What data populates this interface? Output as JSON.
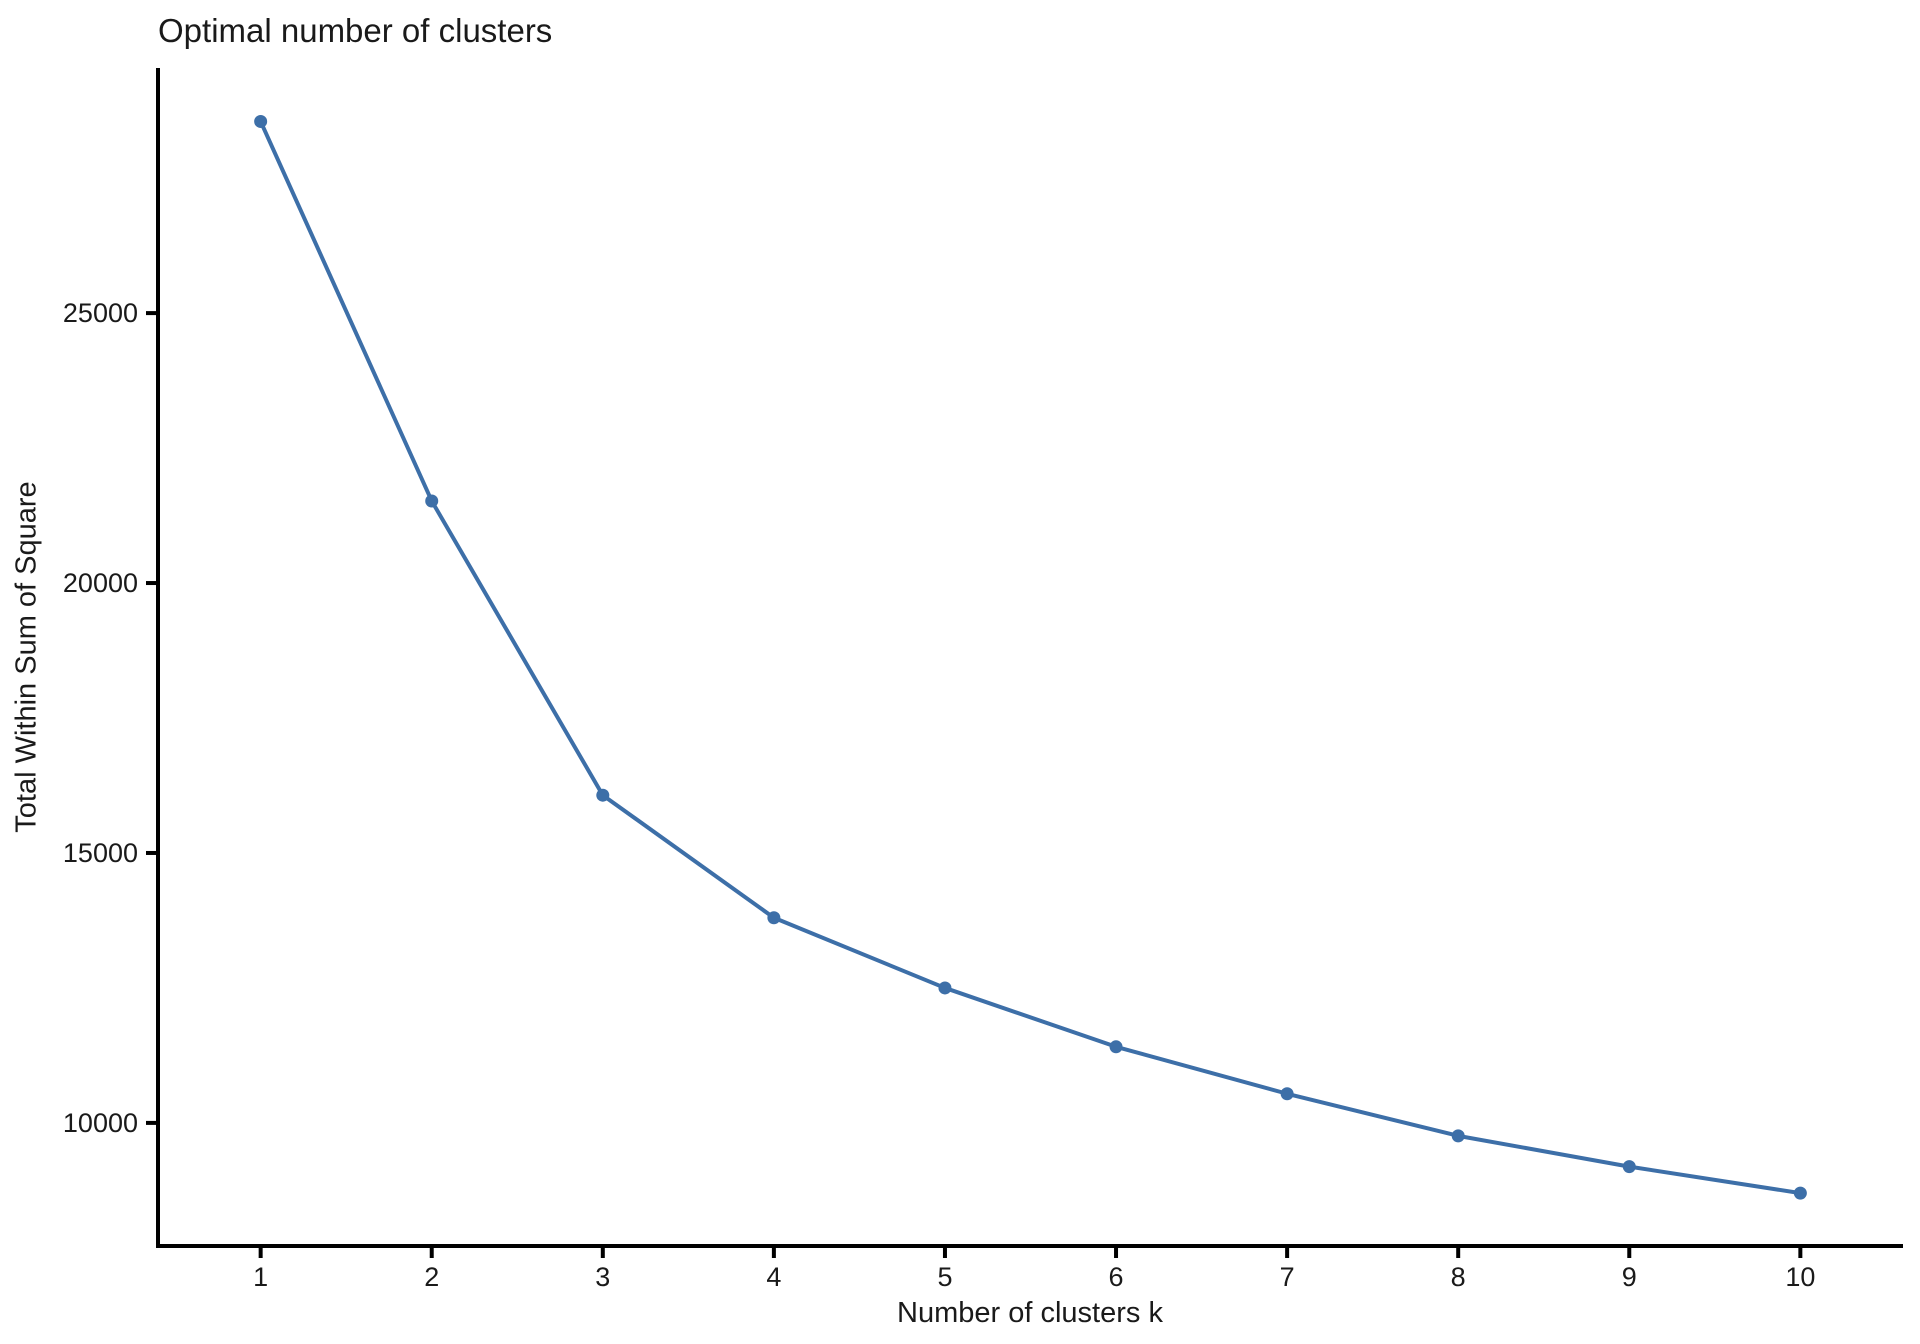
{
  "chart_data": {
    "type": "line",
    "title": "Optimal number of clusters",
    "xlabel": "Number of clusters k",
    "ylabel": "Total Within Sum of Square",
    "x": [
      1,
      2,
      3,
      4,
      5,
      6,
      7,
      8,
      9,
      10
    ],
    "y": [
      28550,
      21520,
      16070,
      13800,
      12500,
      11410,
      10540,
      9760,
      9190,
      8700
    ],
    "xticks": {
      "values": [
        1,
        2,
        3,
        4,
        5,
        6,
        7,
        8,
        9,
        10
      ],
      "labels": [
        "1",
        "2",
        "3",
        "4",
        "5",
        "6",
        "7",
        "8",
        "9",
        "10"
      ]
    },
    "yticks": {
      "values": [
        10000,
        15000,
        20000,
        25000
      ],
      "labels": [
        "10000",
        "15000",
        "20000",
        "25000"
      ]
    },
    "xlim": [
      0.4,
      10.6
    ],
    "ylim": [
      7720,
      29540
    ],
    "grid": false,
    "legend": "none",
    "line_color": "#3d6fa8",
    "point_color": "#3d6fa8",
    "axis_color": "#000000",
    "text_color": "#1a1a1a",
    "marker": "circle"
  }
}
